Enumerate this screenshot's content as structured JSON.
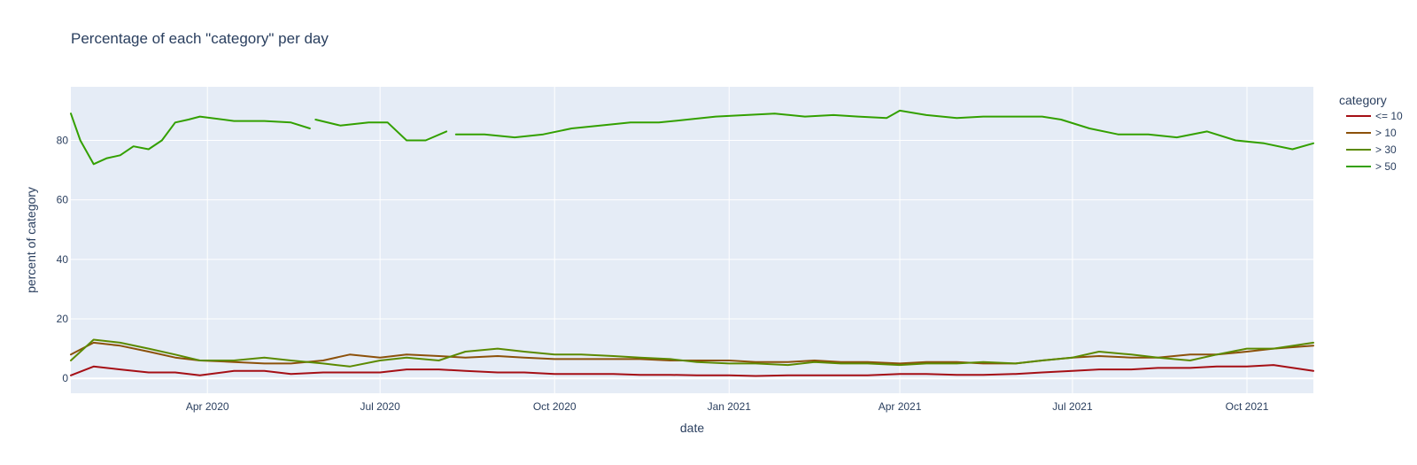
{
  "chart_data": {
    "type": "line",
    "title": "Percentage of each \"category\" per day",
    "xlabel": "date",
    "ylabel": "percent of category",
    "x_tick_labels": [
      "Apr 2020",
      "Jul 2020",
      "Oct 2020",
      "Jan 2021",
      "Apr 2021",
      "Jul 2021",
      "Oct 2021"
    ],
    "x_tick_dates": [
      "2020-04-01",
      "2020-07-01",
      "2020-10-01",
      "2021-01-01",
      "2021-04-01",
      "2021-07-01",
      "2021-10-01"
    ],
    "y_ticks": [
      0,
      20,
      40,
      60,
      80
    ],
    "xlim": [
      "2020-01-20",
      "2021-11-05"
    ],
    "ylim": [
      -5,
      98
    ],
    "grid": true,
    "legend": {
      "title": "category",
      "placement": "right"
    },
    "series": [
      {
        "name": "<= 10",
        "color": "#a50f15",
        "points": [
          [
            "2020-01-20",
            1
          ],
          [
            "2020-02-01",
            4
          ],
          [
            "2020-02-15",
            3
          ],
          [
            "2020-03-01",
            2
          ],
          [
            "2020-03-15",
            2
          ],
          [
            "2020-03-28",
            1
          ],
          [
            "2020-04-15",
            2.5
          ],
          [
            "2020-05-01",
            2.5
          ],
          [
            "2020-05-15",
            1.5
          ],
          [
            "2020-06-01",
            2
          ],
          [
            "2020-06-15",
            2
          ],
          [
            "2020-07-01",
            2
          ],
          [
            "2020-07-15",
            3
          ],
          [
            "2020-08-01",
            3
          ],
          [
            "2020-08-15",
            2.5
          ],
          [
            "2020-09-01",
            2
          ],
          [
            "2020-09-15",
            2
          ],
          [
            "2020-10-01",
            1.5
          ],
          [
            "2020-10-15",
            1.5
          ],
          [
            "2020-11-01",
            1.5
          ],
          [
            "2020-11-15",
            1.2
          ],
          [
            "2020-12-01",
            1.2
          ],
          [
            "2020-12-15",
            1
          ],
          [
            "2021-01-01",
            1
          ],
          [
            "2021-01-15",
            0.8
          ],
          [
            "2021-02-01",
            1
          ],
          [
            "2021-02-15",
            1
          ],
          [
            "2021-03-01",
            1
          ],
          [
            "2021-03-15",
            1
          ],
          [
            "2021-04-01",
            1.5
          ],
          [
            "2021-04-15",
            1.5
          ],
          [
            "2021-05-01",
            1.2
          ],
          [
            "2021-05-15",
            1.2
          ],
          [
            "2021-06-01",
            1.5
          ],
          [
            "2021-06-15",
            2
          ],
          [
            "2021-07-01",
            2.5
          ],
          [
            "2021-07-15",
            3
          ],
          [
            "2021-08-01",
            3
          ],
          [
            "2021-08-15",
            3.5
          ],
          [
            "2021-09-01",
            3.5
          ],
          [
            "2021-09-15",
            4
          ],
          [
            "2021-10-01",
            4
          ],
          [
            "2021-10-15",
            4.5
          ],
          [
            "2021-11-05",
            2.5
          ]
        ]
      },
      {
        "name": "> 10",
        "color": "#8c510a",
        "points": [
          [
            "2020-01-20",
            8
          ],
          [
            "2020-02-01",
            12
          ],
          [
            "2020-02-15",
            11
          ],
          [
            "2020-03-01",
            9
          ],
          [
            "2020-03-15",
            7
          ],
          [
            "2020-03-28",
            6
          ],
          [
            "2020-04-15",
            5.5
          ],
          [
            "2020-05-01",
            5
          ],
          [
            "2020-05-15",
            5
          ],
          [
            "2020-06-01",
            6
          ],
          [
            "2020-06-15",
            8
          ],
          [
            "2020-07-01",
            7
          ],
          [
            "2020-07-15",
            8
          ],
          [
            "2020-08-01",
            7.5
          ],
          [
            "2020-08-15",
            7
          ],
          [
            "2020-09-01",
            7.5
          ],
          [
            "2020-09-15",
            7
          ],
          [
            "2020-10-01",
            6.5
          ],
          [
            "2020-10-15",
            6.5
          ],
          [
            "2020-11-01",
            6.5
          ],
          [
            "2020-11-15",
            6.5
          ],
          [
            "2020-12-01",
            6
          ],
          [
            "2020-12-15",
            6
          ],
          [
            "2021-01-01",
            6
          ],
          [
            "2021-01-15",
            5.5
          ],
          [
            "2021-02-01",
            5.5
          ],
          [
            "2021-02-15",
            6
          ],
          [
            "2021-03-01",
            5.5
          ],
          [
            "2021-03-15",
            5.5
          ],
          [
            "2021-04-01",
            5
          ],
          [
            "2021-04-15",
            5.5
          ],
          [
            "2021-05-01",
            5.5
          ],
          [
            "2021-05-15",
            5
          ],
          [
            "2021-06-01",
            5
          ],
          [
            "2021-06-15",
            6
          ],
          [
            "2021-07-01",
            7
          ],
          [
            "2021-07-15",
            7.5
          ],
          [
            "2021-08-01",
            7
          ],
          [
            "2021-08-15",
            7
          ],
          [
            "2021-09-01",
            8
          ],
          [
            "2021-09-15",
            8
          ],
          [
            "2021-10-01",
            9
          ],
          [
            "2021-10-15",
            10
          ],
          [
            "2021-11-05",
            11
          ]
        ]
      },
      {
        "name": "> 30",
        "color": "#5b8a00",
        "points": [
          [
            "2020-01-20",
            6
          ],
          [
            "2020-02-01",
            13
          ],
          [
            "2020-02-15",
            12
          ],
          [
            "2020-03-01",
            10
          ],
          [
            "2020-03-15",
            8
          ],
          [
            "2020-03-28",
            6
          ],
          [
            "2020-04-15",
            6
          ],
          [
            "2020-05-01",
            7
          ],
          [
            "2020-05-15",
            6
          ],
          [
            "2020-06-01",
            5
          ],
          [
            "2020-06-15",
            4
          ],
          [
            "2020-07-01",
            6
          ],
          [
            "2020-07-15",
            7
          ],
          [
            "2020-08-01",
            6
          ],
          [
            "2020-08-15",
            9
          ],
          [
            "2020-09-01",
            10
          ],
          [
            "2020-09-15",
            9
          ],
          [
            "2020-10-01",
            8
          ],
          [
            "2020-10-15",
            8
          ],
          [
            "2020-11-01",
            7.5
          ],
          [
            "2020-11-15",
            7
          ],
          [
            "2020-12-01",
            6.5
          ],
          [
            "2020-12-15",
            5.5
          ],
          [
            "2021-01-01",
            5
          ],
          [
            "2021-01-15",
            5
          ],
          [
            "2021-02-01",
            4.5
          ],
          [
            "2021-02-15",
            5.5
          ],
          [
            "2021-03-01",
            5
          ],
          [
            "2021-03-15",
            5
          ],
          [
            "2021-04-01",
            4.5
          ],
          [
            "2021-04-15",
            5
          ],
          [
            "2021-05-01",
            5
          ],
          [
            "2021-05-15",
            5.5
          ],
          [
            "2021-06-01",
            5
          ],
          [
            "2021-06-15",
            6
          ],
          [
            "2021-07-01",
            7
          ],
          [
            "2021-07-15",
            9
          ],
          [
            "2021-08-01",
            8
          ],
          [
            "2021-08-15",
            7
          ],
          [
            "2021-09-01",
            6
          ],
          [
            "2021-09-15",
            8
          ],
          [
            "2021-10-01",
            10
          ],
          [
            "2021-10-15",
            10
          ],
          [
            "2021-11-05",
            12
          ]
        ]
      },
      {
        "name": "> 50",
        "color": "#33a000",
        "gaps_after": [
          "2020-05-25",
          "2020-08-05"
        ],
        "points": [
          [
            "2020-01-20",
            89
          ],
          [
            "2020-01-25",
            80
          ],
          [
            "2020-02-01",
            72
          ],
          [
            "2020-02-08",
            74
          ],
          [
            "2020-02-15",
            75
          ],
          [
            "2020-02-22",
            78
          ],
          [
            "2020-03-01",
            77
          ],
          [
            "2020-03-08",
            80
          ],
          [
            "2020-03-15",
            86
          ],
          [
            "2020-03-22",
            87
          ],
          [
            "2020-03-28",
            88
          ],
          [
            "2020-04-15",
            86.5
          ],
          [
            "2020-05-01",
            86.5
          ],
          [
            "2020-05-15",
            86
          ],
          [
            "2020-05-25",
            84
          ],
          [
            "2020-05-28",
            87
          ],
          [
            "2020-06-10",
            85
          ],
          [
            "2020-06-25",
            86
          ],
          [
            "2020-07-05",
            86
          ],
          [
            "2020-07-15",
            80
          ],
          [
            "2020-07-25",
            80
          ],
          [
            "2020-08-05",
            83
          ],
          [
            "2020-08-10",
            82
          ],
          [
            "2020-08-25",
            82
          ],
          [
            "2020-09-10",
            81
          ],
          [
            "2020-09-25",
            82
          ],
          [
            "2020-10-10",
            84
          ],
          [
            "2020-10-25",
            85
          ],
          [
            "2020-11-10",
            86
          ],
          [
            "2020-11-25",
            86
          ],
          [
            "2020-12-10",
            87
          ],
          [
            "2020-12-25",
            88
          ],
          [
            "2021-01-10",
            88.5
          ],
          [
            "2021-01-25",
            89
          ],
          [
            "2021-02-10",
            88
          ],
          [
            "2021-02-25",
            88.5
          ],
          [
            "2021-03-10",
            88
          ],
          [
            "2021-03-25",
            87.5
          ],
          [
            "2021-04-01",
            90
          ],
          [
            "2021-04-15",
            88.5
          ],
          [
            "2021-05-01",
            87.5
          ],
          [
            "2021-05-15",
            88
          ],
          [
            "2021-06-01",
            88
          ],
          [
            "2021-06-15",
            88
          ],
          [
            "2021-06-25",
            87
          ],
          [
            "2021-07-10",
            84
          ],
          [
            "2021-07-25",
            82
          ],
          [
            "2021-08-10",
            82
          ],
          [
            "2021-08-25",
            81
          ],
          [
            "2021-09-10",
            83
          ],
          [
            "2021-09-25",
            80
          ],
          [
            "2021-10-10",
            79
          ],
          [
            "2021-10-25",
            77
          ],
          [
            "2021-11-05",
            79
          ]
        ]
      }
    ]
  }
}
